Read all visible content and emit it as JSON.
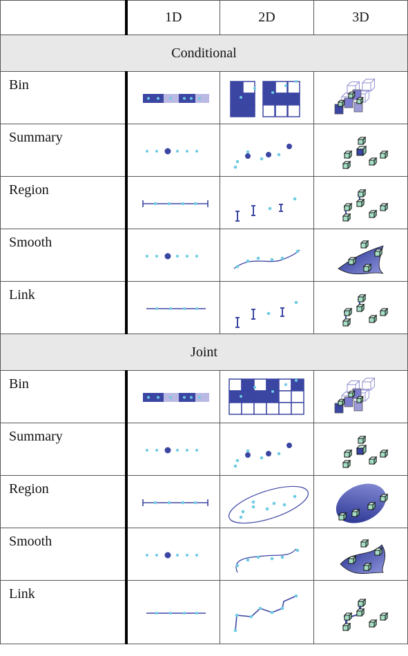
{
  "table": {
    "columns": [
      "1D",
      "2D",
      "3D"
    ],
    "sections": [
      {
        "title": "Conditional",
        "rows": [
          "Bin",
          "Summary",
          "Region",
          "Smooth",
          "Link"
        ]
      },
      {
        "title": "Joint",
        "rows": [
          "Bin",
          "Summary",
          "Region",
          "Smooth",
          "Link"
        ]
      }
    ]
  }
}
